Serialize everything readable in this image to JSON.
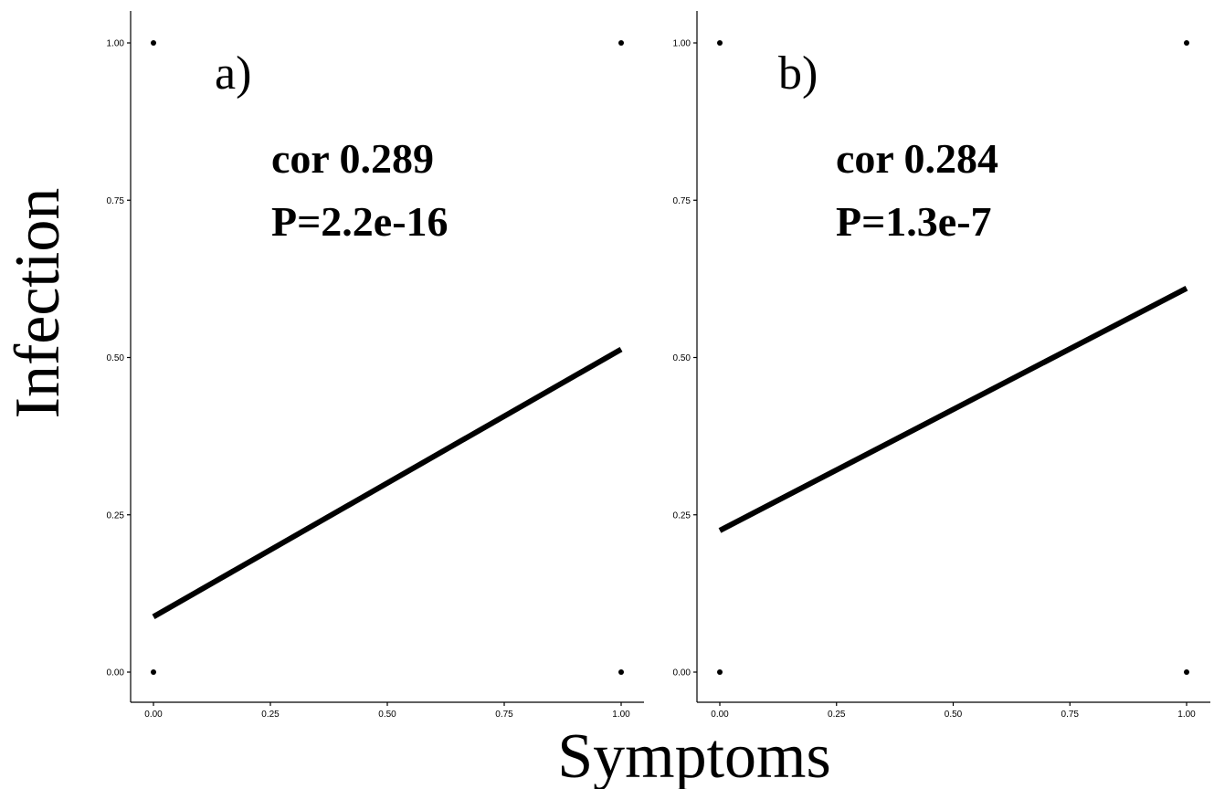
{
  "figure": {
    "xlabel": "Symptoms",
    "ylabel": "Infection"
  },
  "chart_data": [
    {
      "type": "scatter",
      "panel_label": "a)",
      "annotation": [
        "cor 0.289",
        "P=2.2e-16"
      ],
      "xlim": [
        0,
        1
      ],
      "ylim": [
        0,
        1
      ],
      "xticks": [
        "0.00",
        "0.25",
        "0.50",
        "0.75",
        "1.00"
      ],
      "yticks": [
        "0.00",
        "0.25",
        "0.50",
        "0.75",
        "1.00"
      ],
      "points": [
        {
          "x": 0,
          "y": 1
        },
        {
          "x": 1,
          "y": 1
        },
        {
          "x": 0,
          "y": 0
        },
        {
          "x": 1,
          "y": 0
        }
      ],
      "fit_line": {
        "x": [
          0,
          1
        ],
        "y": [
          0.088,
          0.513
        ]
      },
      "grid": false
    },
    {
      "type": "scatter",
      "panel_label": "b)",
      "annotation": [
        "cor 0.284",
        "P=1.3e-7"
      ],
      "xlim": [
        0,
        1
      ],
      "ylim": [
        0,
        1
      ],
      "xticks": [
        "0.00",
        "0.25",
        "0.50",
        "0.75",
        "1.00"
      ],
      "yticks": [
        "0.00",
        "0.25",
        "0.50",
        "0.75",
        "1.00"
      ],
      "points": [
        {
          "x": 0,
          "y": 1
        },
        {
          "x": 1,
          "y": 1
        },
        {
          "x": 0,
          "y": 0
        },
        {
          "x": 1,
          "y": 0
        }
      ],
      "fit_line": {
        "x": [
          0,
          1
        ],
        "y": [
          0.225,
          0.61
        ]
      },
      "grid": false
    }
  ]
}
